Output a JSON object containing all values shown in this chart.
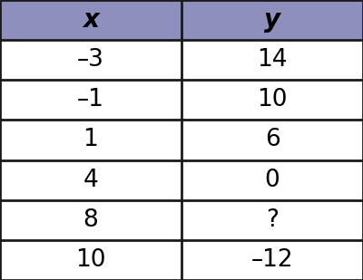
{
  "col_headers": [
    "x",
    "y"
  ],
  "rows": [
    [
      "–3",
      "14"
    ],
    [
      "–1",
      "10"
    ],
    [
      "1",
      "6"
    ],
    [
      "4",
      "0"
    ],
    [
      "8",
      "?"
    ],
    [
      "10",
      "–12"
    ]
  ],
  "header_bg_color": "#8f8fbe",
  "row_bg_color": "#ffffff",
  "border_color": "#1a1a1a",
  "header_text_color": "#000000",
  "cell_text_color": "#000000",
  "header_fontsize": 20,
  "cell_fontsize": 19,
  "fig_bg_color": "#ffffff",
  "border_lw": 2.0,
  "col_split": 0.5
}
